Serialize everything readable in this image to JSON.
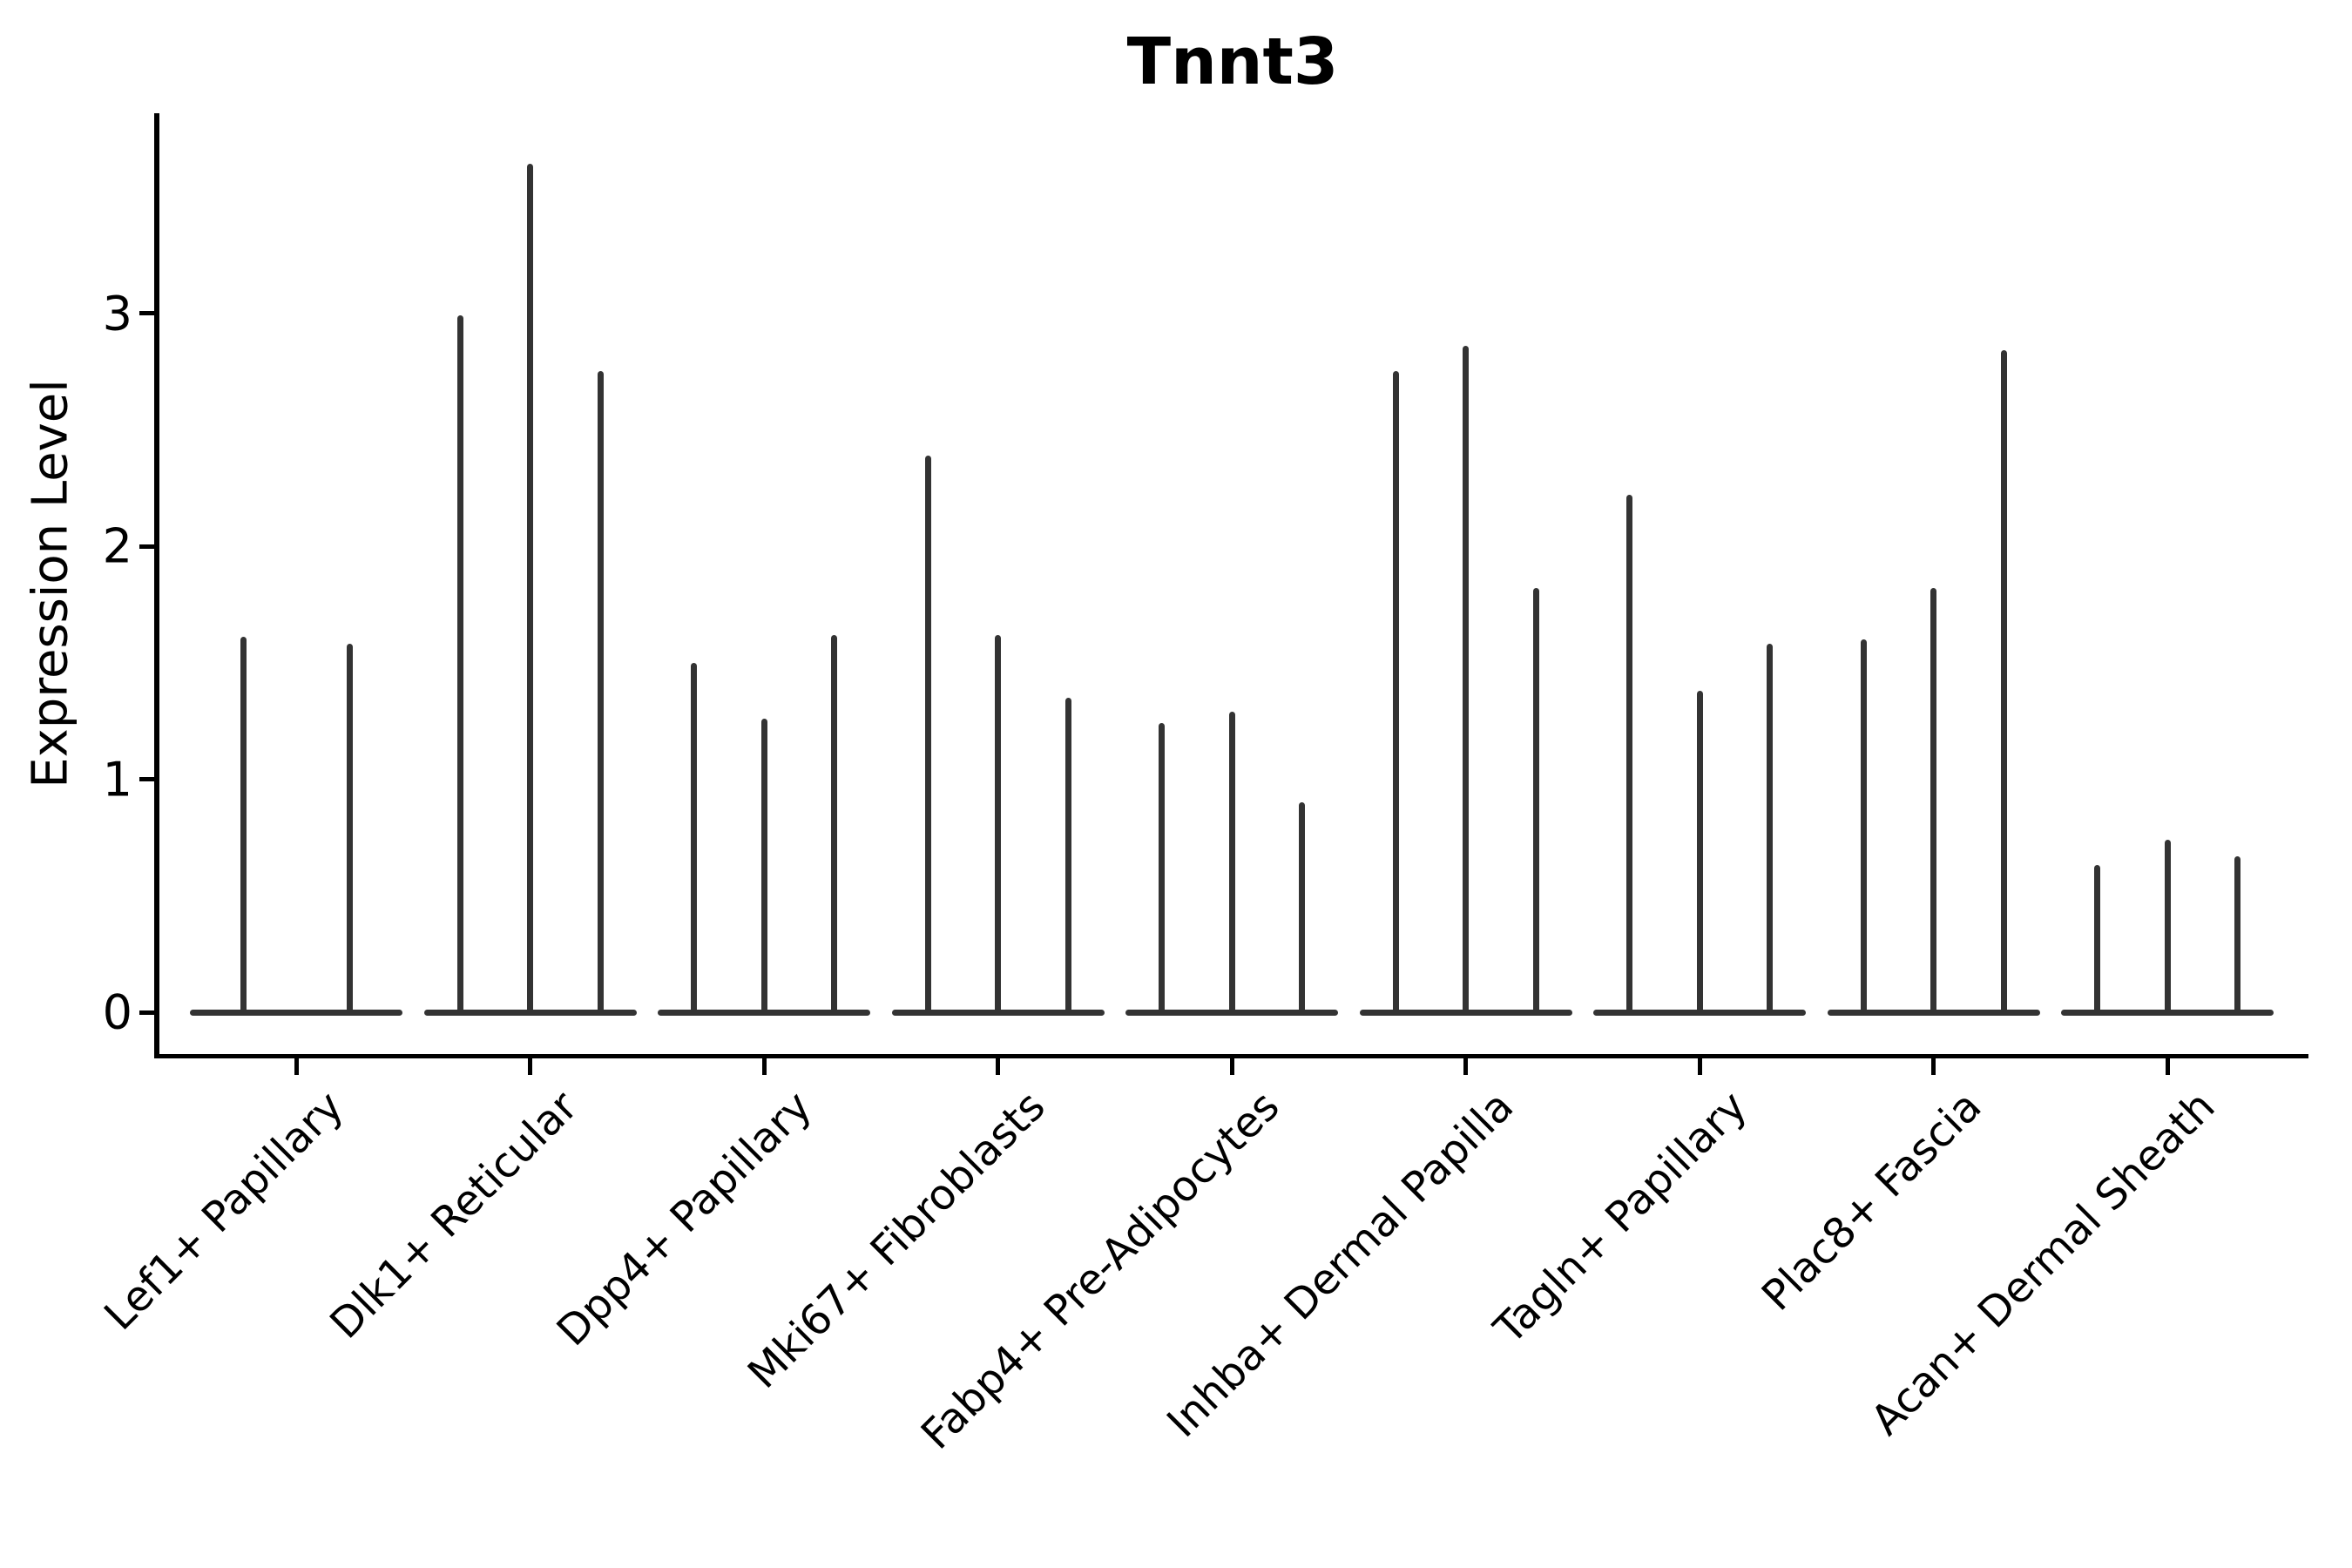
{
  "title": "Tnnt3",
  "y_axis": {
    "label": "Expression Level",
    "tick_labels": [
      "0",
      "1",
      "2",
      "3"
    ]
  },
  "x_axis": {
    "tick_labels": [
      "Lef1+ Papillary",
      "Dlk1+ Reticular",
      "Dpp4+ Papillary",
      "Mki67+ Fibroblasts",
      "Fabp4+ Pre-Adipocytes",
      "Inhba+ Dermal Papilla",
      "Tagln+ Papillary",
      "Plac8+ Fascia",
      "Acan+ Dermal Sheath"
    ]
  },
  "chart_data": {
    "type": "violin",
    "title": "Tnnt3",
    "xlabel": "",
    "ylabel": "Expression Level",
    "ylim": [
      -0.18,
      3.86
    ],
    "yticks": [
      0,
      1,
      2,
      3
    ],
    "grid": false,
    "legend_position": "none",
    "orientation": "vertical",
    "violin_shape_note": "density mass concentrated at 0 (flat wide base) with a thin tail rising to each violin maximum",
    "categories": [
      "Lef1+ Papillary",
      "Dlk1+ Reticular",
      "Dpp4+ Papillary",
      "Mki67+ Fibroblasts",
      "Fabp4+ Pre-Adipocytes",
      "Inhba+ Dermal Papilla",
      "Tagln+ Papillary",
      "Plac8+ Fascia",
      "Acan+ Dermal Sheath"
    ],
    "groups": [
      {
        "category": "Lef1+ Papillary",
        "violin_maxima": [
          1.61,
          1.58
        ]
      },
      {
        "category": "Dlk1+ Reticular",
        "violin_maxima": [
          2.99,
          3.64,
          2.75
        ]
      },
      {
        "category": "Dpp4+ Papillary",
        "violin_maxima": [
          1.5,
          1.26,
          1.62
        ]
      },
      {
        "category": "Mki67+ Fibroblasts",
        "violin_maxima": [
          2.39,
          1.62,
          1.35
        ]
      },
      {
        "category": "Fabp4+ Pre-Adipocytes",
        "violin_maxima": [
          1.24,
          1.29,
          0.9
        ]
      },
      {
        "category": "Inhba+ Dermal Papilla",
        "violin_maxima": [
          2.75,
          2.86,
          1.82
        ]
      },
      {
        "category": "Tagln+ Papillary",
        "violin_maxima": [
          2.22,
          1.38,
          1.58
        ]
      },
      {
        "category": "Plac8+ Fascia",
        "violin_maxima": [
          1.6,
          1.82,
          2.84
        ]
      },
      {
        "category": "Acan+ Dermal Sheath",
        "violin_maxima": [
          0.63,
          0.74,
          0.67
        ]
      }
    ],
    "colors": {
      "violin": "#333333",
      "spine": "#000000",
      "text": "#000000",
      "background": "#ffffff"
    }
  }
}
